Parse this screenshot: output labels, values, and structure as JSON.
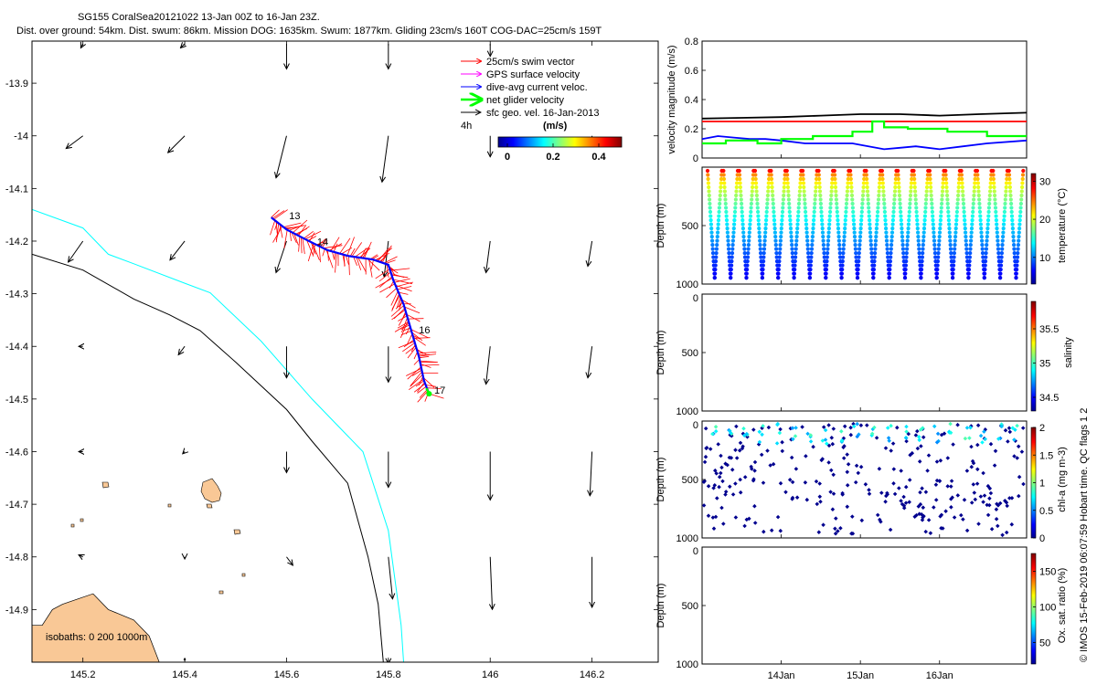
{
  "header": {
    "title": "SG155 CoralSea20121022 13-Jan 00Z to 16-Jan 23Z.",
    "subtitle": "Dist. over ground: 54km. Dist. swum: 86km. Mission DOG: 1635km. Swum: 1877km. Gliding 23cm/s 160T COG-DAC=25cm/s 159T"
  },
  "credit": "© IMOS 15-Feb-2019 06:07:59 Hobart time. QC flags 1  2",
  "colors": {
    "swim": "#ff0000",
    "gps": "#ff00ff",
    "dac": "#0000ff",
    "net": "#00ff00",
    "geo": "#000000",
    "land": "#f9c896",
    "iso0": "#000000",
    "iso200": "#00ffff",
    "iso1000": "#000000"
  },
  "chart_data": [
    {
      "type": "scatter",
      "name": "track-map",
      "xlabel": "",
      "ylabel": "",
      "xlim": [
        145.1,
        146.33
      ],
      "ylim": [
        -15.0,
        -13.82
      ],
      "x_ticks": [
        "145.2",
        "145.4",
        "145.6",
        "145.8",
        "146",
        "146.2"
      ],
      "x_tick_values": [
        145.2,
        145.4,
        145.6,
        145.8,
        146.0,
        146.2
      ],
      "y_ticks": [
        "-13.9",
        "-14",
        "-14.1",
        "-14.2",
        "-14.3",
        "-14.4",
        "-14.5",
        "-14.6",
        "-14.7",
        "-14.8",
        "-14.9"
      ],
      "y_tick_values": [
        -13.9,
        -14.0,
        -14.1,
        -14.2,
        -14.3,
        -14.4,
        -14.5,
        -14.6,
        -14.7,
        -14.8,
        -14.9
      ],
      "legend": [
        {
          "label": "25cm/s swim vector",
          "color": "#ff0000"
        },
        {
          "label": "GPS surface velocity",
          "color": "#ff00ff"
        },
        {
          "label": "dive-avg current veloc.",
          "color": "#0000ff"
        },
        {
          "label": "net glider velocity",
          "color": "#00ff00"
        },
        {
          "label": "sfc geo. vel. 16-Jan-2013",
          "color": "#000000"
        }
      ],
      "legend_position": "top-right",
      "colorbar": {
        "title": "(m/s)",
        "corner_label": "4h",
        "ticks": [
          "0",
          "0.2",
          "0.4"
        ],
        "tick_values": [
          0,
          0.2,
          0.4
        ],
        "range": [
          -0.04,
          0.5
        ]
      },
      "isobaths_label": "isobaths: 0   200  1000m",
      "track": [
        [
          145.57,
          -14.155
        ],
        [
          145.6,
          -14.178
        ],
        [
          145.64,
          -14.198
        ],
        [
          145.68,
          -14.217
        ],
        [
          145.72,
          -14.228
        ],
        [
          145.77,
          -14.235
        ],
        [
          145.8,
          -14.245
        ],
        [
          145.81,
          -14.275
        ],
        [
          145.83,
          -14.32
        ],
        [
          145.845,
          -14.37
        ],
        [
          145.86,
          -14.42
        ],
        [
          145.87,
          -14.465
        ],
        [
          145.88,
          -14.49
        ]
      ],
      "day_labels": [
        {
          "text": "13",
          "lon": 145.605,
          "lat": -14.158
        },
        {
          "text": "14",
          "lon": 145.66,
          "lat": -14.208
        },
        {
          "text": "16",
          "lon": 145.86,
          "lat": -14.375
        },
        {
          "text": "17",
          "lon": 145.89,
          "lat": -14.49
        }
      ],
      "geo_vectors": [
        {
          "lon": 145.2,
          "lat": -13.825,
          "u": -0.01,
          "v": -0.02
        },
        {
          "lon": 145.4,
          "lat": -13.825,
          "u": -0.02,
          "v": -0.02
        },
        {
          "lon": 145.6,
          "lat": -13.825,
          "u": 0.0,
          "v": -0.12
        },
        {
          "lon": 145.8,
          "lat": -13.825,
          "u": 0.0,
          "v": -0.12
        },
        {
          "lon": 146.0,
          "lat": -13.825,
          "u": 0.0,
          "v": -0.06
        },
        {
          "lon": 145.2,
          "lat": -14.0,
          "u": -0.08,
          "v": -0.06
        },
        {
          "lon": 145.4,
          "lat": -14.0,
          "u": -0.08,
          "v": -0.08
        },
        {
          "lon": 145.6,
          "lat": -14.0,
          "u": -0.05,
          "v": -0.2
        },
        {
          "lon": 145.8,
          "lat": -14.0,
          "u": -0.03,
          "v": -0.22
        },
        {
          "lon": 146.0,
          "lat": -14.0,
          "u": 0.0,
          "v": -0.1
        },
        {
          "lon": 146.2,
          "lat": -14.0,
          "u": 0.0,
          "v": -0.05
        },
        {
          "lon": 145.2,
          "lat": -14.2,
          "u": -0.07,
          "v": -0.1
        },
        {
          "lon": 145.4,
          "lat": -14.2,
          "u": -0.07,
          "v": -0.09
        },
        {
          "lon": 145.6,
          "lat": -14.2,
          "u": -0.05,
          "v": -0.15
        },
        {
          "lon": 145.8,
          "lat": -14.2,
          "u": -0.02,
          "v": -0.17
        },
        {
          "lon": 146.0,
          "lat": -14.2,
          "u": -0.02,
          "v": -0.15
        },
        {
          "lon": 146.2,
          "lat": -14.2,
          "u": -0.02,
          "v": -0.12
        },
        {
          "lon": 145.2,
          "lat": -14.4,
          "u": -0.02,
          "v": 0.0
        },
        {
          "lon": 145.4,
          "lat": -14.4,
          "u": -0.03,
          "v": -0.04
        },
        {
          "lon": 145.6,
          "lat": -14.4,
          "u": 0.0,
          "v": -0.15
        },
        {
          "lon": 145.8,
          "lat": -14.4,
          "u": 0.0,
          "v": -0.17
        },
        {
          "lon": 146.0,
          "lat": -14.4,
          "u": -0.02,
          "v": -0.18
        },
        {
          "lon": 146.2,
          "lat": -14.4,
          "u": -0.02,
          "v": -0.15
        },
        {
          "lon": 145.2,
          "lat": -14.6,
          "u": -0.02,
          "v": 0.0
        },
        {
          "lon": 145.4,
          "lat": -14.6,
          "u": -0.01,
          "v": -0.01
        },
        {
          "lon": 145.6,
          "lat": -14.6,
          "u": 0.0,
          "v": -0.1
        },
        {
          "lon": 145.8,
          "lat": -14.6,
          "u": 0.0,
          "v": -0.17
        },
        {
          "lon": 146.0,
          "lat": -14.6,
          "u": 0.0,
          "v": -0.23
        },
        {
          "lon": 146.2,
          "lat": -14.6,
          "u": -0.01,
          "v": -0.21
        },
        {
          "lon": 145.2,
          "lat": -14.8,
          "u": -0.02,
          "v": 0.01
        },
        {
          "lon": 145.4,
          "lat": -14.8,
          "u": 0.0,
          "v": -0.01
        },
        {
          "lon": 145.6,
          "lat": -14.8,
          "u": 0.03,
          "v": -0.04
        },
        {
          "lon": 145.8,
          "lat": -14.8,
          "u": 0.02,
          "v": -0.2
        },
        {
          "lon": 146.0,
          "lat": -14.8,
          "u": 0.01,
          "v": -0.25
        },
        {
          "lon": 146.2,
          "lat": -14.8,
          "u": 0.0,
          "v": -0.24
        },
        {
          "lon": 145.4,
          "lat": -14.995,
          "u": 0.0,
          "v": 0.0
        },
        {
          "lon": 145.8,
          "lat": -14.995,
          "u": 0.0,
          "v": -0.02
        }
      ],
      "isobath_0": [
        [
          145.12,
          -14.93
        ],
        [
          145.14,
          -14.9
        ],
        [
          145.16,
          -14.89
        ],
        [
          145.19,
          -14.88
        ],
        [
          145.22,
          -14.87
        ],
        [
          145.25,
          -14.9
        ],
        [
          145.3,
          -14.92
        ],
        [
          145.33,
          -14.95
        ],
        [
          145.35,
          -15.0
        ],
        [
          145.1,
          -15.0
        ],
        [
          145.1,
          -14.93
        ]
      ],
      "isobath_200": [
        [
          145.1,
          -14.14
        ],
        [
          145.2,
          -14.175
        ],
        [
          145.25,
          -14.225
        ],
        [
          145.3,
          -14.243
        ],
        [
          145.4,
          -14.28
        ],
        [
          145.45,
          -14.298
        ],
        [
          145.55,
          -14.39
        ],
        [
          145.65,
          -14.5
        ],
        [
          145.75,
          -14.6
        ],
        [
          145.8,
          -14.75
        ],
        [
          145.825,
          -14.93
        ],
        [
          145.83,
          -15.0
        ]
      ],
      "isobath_1000": [
        [
          145.1,
          -14.225
        ],
        [
          145.2,
          -14.255
        ],
        [
          145.3,
          -14.31
        ],
        [
          145.37,
          -14.34
        ],
        [
          145.43,
          -14.37
        ],
        [
          145.5,
          -14.43
        ],
        [
          145.6,
          -14.52
        ],
        [
          145.65,
          -14.58
        ],
        [
          145.72,
          -14.66
        ],
        [
          145.76,
          -14.8
        ],
        [
          145.78,
          -14.89
        ],
        [
          145.79,
          -15.0
        ]
      ]
    },
    {
      "type": "line",
      "name": "velocity-magnitude",
      "ylabel": "velocity magnitude (m/s)",
      "xlim": [
        0,
        4.1
      ],
      "ylim": [
        0,
        0.8
      ],
      "y_ticks": [
        "0",
        "0.2",
        "0.4",
        "0.6",
        "0.8"
      ],
      "y_tick_values": [
        0,
        0.2,
        0.4,
        0.6,
        0.8
      ],
      "series": [
        {
          "name": "swim",
          "color": "#ff0000",
          "x": [
            0,
            4.1
          ],
          "values": [
            0.25,
            0.25
          ]
        },
        {
          "name": "sfc geo",
          "color": "#000000",
          "x": [
            0,
            0.5,
            1,
            1.5,
            2,
            2.5,
            3,
            3.5,
            4.1
          ],
          "values": [
            0.27,
            0.275,
            0.28,
            0.29,
            0.3,
            0.3,
            0.29,
            0.3,
            0.31
          ]
        },
        {
          "name": "dac",
          "color": "#0000ff",
          "x": [
            0,
            0.2,
            0.4,
            0.6,
            0.8,
            1.0,
            1.3,
            1.6,
            1.9,
            2.0,
            2.3,
            2.5,
            2.7,
            3.0,
            3.3,
            3.6,
            4.1
          ],
          "values": [
            0.13,
            0.15,
            0.14,
            0.13,
            0.13,
            0.12,
            0.1,
            0.1,
            0.1,
            0.09,
            0.06,
            0.07,
            0.08,
            0.06,
            0.08,
            0.1,
            0.12
          ]
        },
        {
          "name": "net",
          "color": "#00ff00",
          "x": [
            0,
            0.3,
            0.3,
            0.7,
            0.7,
            1.0,
            1.0,
            1.4,
            1.4,
            1.9,
            1.9,
            2.15,
            2.15,
            2.3,
            2.3,
            2.6,
            2.6,
            3.1,
            3.1,
            3.6,
            3.6,
            4.1
          ],
          "values": [
            0.1,
            0.1,
            0.12,
            0.12,
            0.1,
            0.1,
            0.13,
            0.13,
            0.15,
            0.15,
            0.18,
            0.18,
            0.25,
            0.25,
            0.21,
            0.21,
            0.2,
            0.2,
            0.18,
            0.18,
            0.15,
            0.15
          ]
        }
      ]
    },
    {
      "type": "scatter",
      "name": "temperature-section",
      "ylabel": "Depth (m)",
      "ylim": [
        1000,
        0
      ],
      "y_ticks": [
        "500",
        "1000"
      ],
      "y_tick_values": [
        500,
        1000
      ],
      "colorbar": {
        "label": "temperature (°C)",
        "ticks": [
          "30",
          "20",
          "10"
        ],
        "tick_values": [
          30,
          20,
          10
        ],
        "range": [
          3,
          32
        ]
      },
      "dives": 20
    },
    {
      "type": "scatter",
      "name": "salinity-section",
      "ylabel": "Depth (m)",
      "ylim": [
        1000,
        0
      ],
      "y_ticks": [
        "0",
        "500",
        "1000"
      ],
      "y_tick_values": [
        0,
        500,
        1000
      ],
      "colorbar": {
        "label": "salinity",
        "ticks": [
          "35.5",
          "35",
          "34.5"
        ],
        "tick_values": [
          35.5,
          35,
          34.5
        ],
        "range": [
          34.3,
          35.9
        ]
      }
    },
    {
      "type": "scatter",
      "name": "chla-section",
      "ylabel": "Depth (m)",
      "ylim": [
        1000,
        0
      ],
      "y_ticks": [
        "0",
        "500",
        "1000"
      ],
      "y_tick_values": [
        0,
        500,
        1000
      ],
      "colorbar": {
        "label": "chl-a (mg m-3)",
        "ticks": [
          "2",
          "1.5",
          "1",
          "0.5",
          "0"
        ],
        "tick_values": [
          2,
          1.5,
          1,
          0.5,
          0
        ],
        "range": [
          0,
          2
        ]
      }
    },
    {
      "type": "scatter",
      "name": "oxygen-section",
      "ylabel": "Depth (m)",
      "ylim": [
        1000,
        0
      ],
      "y_ticks": [
        "0",
        "500",
        "1000"
      ],
      "y_tick_values": [
        0,
        500,
        1000
      ],
      "x_ticks": [
        "14Jan",
        "15Jan",
        "16Jan"
      ],
      "x_tick_values": [
        1,
        2,
        3
      ],
      "colorbar": {
        "label": "Ox. sat. ratio (%)",
        "ticks": [
          "150",
          "100",
          "50"
        ],
        "tick_values": [
          150,
          100,
          50
        ],
        "range": [
          20,
          175
        ]
      }
    }
  ]
}
